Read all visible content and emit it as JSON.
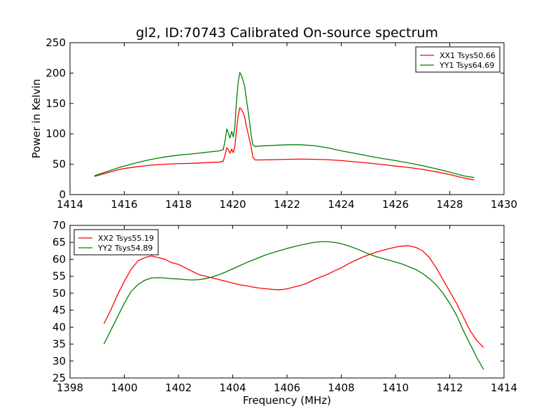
{
  "figure": {
    "title": "gl2, ID:70743 Calibrated On-source spectrum",
    "background": "#ffffff"
  },
  "chart_data": [
    {
      "type": "line",
      "xlabel": "",
      "ylabel": "Power in Kelvin",
      "xlim": [
        1414,
        1430
      ],
      "ylim": [
        0,
        250
      ],
      "xticks": [
        1414,
        1416,
        1418,
        1420,
        1422,
        1424,
        1426,
        1428,
        1430
      ],
      "yticks": [
        0,
        50,
        100,
        150,
        200,
        250
      ],
      "grid": false,
      "legend_position": "top-right",
      "series": [
        {
          "name": "XX1 Tsys50.66",
          "color": "#ff0000",
          "x": [
            1414.9,
            1415.3,
            1415.7,
            1416.0,
            1416.5,
            1417.0,
            1417.5,
            1418.0,
            1418.5,
            1419.0,
            1419.5,
            1419.65,
            1419.72,
            1419.78,
            1419.84,
            1419.9,
            1419.96,
            1420.02,
            1420.08,
            1420.14,
            1420.2,
            1420.26,
            1420.32,
            1420.38,
            1420.44,
            1420.5,
            1420.56,
            1420.62,
            1420.68,
            1420.74,
            1420.82,
            1421.0,
            1421.5,
            1422.0,
            1422.5,
            1423.0,
            1423.5,
            1424.0,
            1424.5,
            1425.0,
            1425.5,
            1426.0,
            1426.5,
            1427.0,
            1427.5,
            1428.0,
            1428.5,
            1428.9
          ],
          "y": [
            30,
            35,
            40,
            43,
            46,
            48.5,
            50,
            51,
            51.5,
            52.5,
            53.5,
            55,
            66,
            77,
            74,
            68,
            75,
            69,
            80,
            108,
            130,
            143,
            140,
            135,
            128,
            112,
            102,
            90,
            78,
            62,
            57,
            57,
            57.5,
            58,
            58.5,
            58,
            57.5,
            56,
            54,
            52,
            49.5,
            47,
            44.5,
            41.5,
            37.5,
            33,
            27.5,
            24
          ]
        },
        {
          "name": "YY1 Tsys64.69",
          "color": "#008000",
          "x": [
            1414.9,
            1415.3,
            1415.7,
            1416.0,
            1416.5,
            1417.0,
            1417.5,
            1418.0,
            1418.5,
            1419.0,
            1419.5,
            1419.65,
            1419.72,
            1419.78,
            1419.84,
            1419.9,
            1419.96,
            1420.02,
            1420.08,
            1420.14,
            1420.2,
            1420.26,
            1420.32,
            1420.38,
            1420.44,
            1420.5,
            1420.56,
            1420.62,
            1420.68,
            1420.74,
            1420.82,
            1421.0,
            1421.5,
            1422.0,
            1422.5,
            1423.0,
            1423.5,
            1424.0,
            1424.5,
            1425.0,
            1425.5,
            1426.0,
            1426.5,
            1427.0,
            1427.5,
            1428.0,
            1428.5,
            1428.9
          ],
          "y": [
            31,
            37,
            43,
            47,
            53,
            58,
            62,
            65,
            67,
            69.5,
            72,
            74,
            90,
            108,
            101,
            93,
            104,
            95,
            113,
            155,
            185,
            201,
            196,
            188,
            178,
            158,
            140,
            120,
            98,
            82,
            79,
            80,
            81,
            82,
            82,
            80.5,
            77,
            72,
            68,
            63.5,
            59.5,
            56,
            52,
            47.5,
            42.5,
            37,
            31,
            28
          ]
        }
      ]
    },
    {
      "type": "line",
      "xlabel": "Frequency (MHz)",
      "ylabel": "",
      "xlim": [
        1398,
        1414
      ],
      "ylim": [
        25,
        70
      ],
      "xticks": [
        1398,
        1400,
        1402,
        1404,
        1406,
        1408,
        1410,
        1412,
        1414
      ],
      "yticks": [
        25,
        30,
        35,
        40,
        45,
        50,
        55,
        60,
        65,
        70
      ],
      "grid": false,
      "legend_position": "top-left",
      "series": [
        {
          "name": "XX2 Tsys55.19",
          "color": "#ff0000",
          "x": [
            1399.25,
            1399.5,
            1399.75,
            1400.0,
            1400.25,
            1400.5,
            1400.75,
            1401.0,
            1401.25,
            1401.5,
            1401.75,
            1402.0,
            1402.25,
            1402.5,
            1402.75,
            1403.0,
            1403.25,
            1403.5,
            1403.75,
            1404.0,
            1404.25,
            1404.5,
            1404.75,
            1405.0,
            1405.25,
            1405.5,
            1405.75,
            1406.0,
            1406.25,
            1406.5,
            1406.75,
            1407.0,
            1407.25,
            1407.5,
            1407.75,
            1408.0,
            1408.25,
            1408.5,
            1408.75,
            1409.0,
            1409.25,
            1409.5,
            1409.75,
            1410.0,
            1410.25,
            1410.5,
            1410.75,
            1411.0,
            1411.25,
            1411.5,
            1411.75,
            1412.0,
            1412.25,
            1412.5,
            1412.75,
            1413.0,
            1413.25
          ],
          "y": [
            41,
            45,
            49.5,
            53.5,
            57,
            59.5,
            60.5,
            61,
            60.5,
            60,
            59,
            58.5,
            57.5,
            56.5,
            55.5,
            55,
            54.5,
            54,
            53.5,
            53,
            52.5,
            52.2,
            51.8,
            51.5,
            51.3,
            51.1,
            51,
            51.3,
            51.8,
            52.3,
            53,
            54,
            54.8,
            55.6,
            56.6,
            57.5,
            58.6,
            59.6,
            60.5,
            61.3,
            62,
            62.6,
            63.1,
            63.6,
            63.9,
            64,
            63.5,
            62.5,
            60.5,
            57.5,
            54,
            50.5,
            47,
            43,
            39,
            36,
            34
          ]
        },
        {
          "name": "YY2 Tsys54.89",
          "color": "#008000",
          "x": [
            1399.25,
            1399.5,
            1399.75,
            1400.0,
            1400.25,
            1400.5,
            1400.75,
            1401.0,
            1401.25,
            1401.5,
            1401.75,
            1402.0,
            1402.25,
            1402.5,
            1402.75,
            1403.0,
            1403.25,
            1403.5,
            1403.75,
            1404.0,
            1404.25,
            1404.5,
            1404.75,
            1405.0,
            1405.25,
            1405.5,
            1405.75,
            1406.0,
            1406.25,
            1406.5,
            1406.75,
            1407.0,
            1407.25,
            1407.5,
            1407.75,
            1408.0,
            1408.25,
            1408.5,
            1408.75,
            1409.0,
            1409.25,
            1409.5,
            1409.75,
            1410.0,
            1410.25,
            1410.5,
            1410.75,
            1411.0,
            1411.25,
            1411.5,
            1411.75,
            1412.0,
            1412.25,
            1412.5,
            1412.75,
            1413.0,
            1413.25
          ],
          "y": [
            35,
            39,
            43,
            47,
            50.5,
            52.5,
            53.8,
            54.5,
            54.6,
            54.5,
            54.3,
            54.2,
            54,
            53.9,
            54,
            54.3,
            54.8,
            55.5,
            56.3,
            57.2,
            58.1,
            59,
            59.8,
            60.6,
            61.4,
            62,
            62.6,
            63.2,
            63.7,
            64.2,
            64.6,
            65,
            65.2,
            65.2,
            65,
            64.6,
            64,
            63.3,
            62.5,
            61.6,
            60.9,
            60.3,
            59.8,
            59.2,
            58.6,
            57.8,
            57,
            55.8,
            54.3,
            52.5,
            50,
            47,
            43.5,
            39,
            35,
            31,
            27.5
          ]
        }
      ]
    }
  ]
}
